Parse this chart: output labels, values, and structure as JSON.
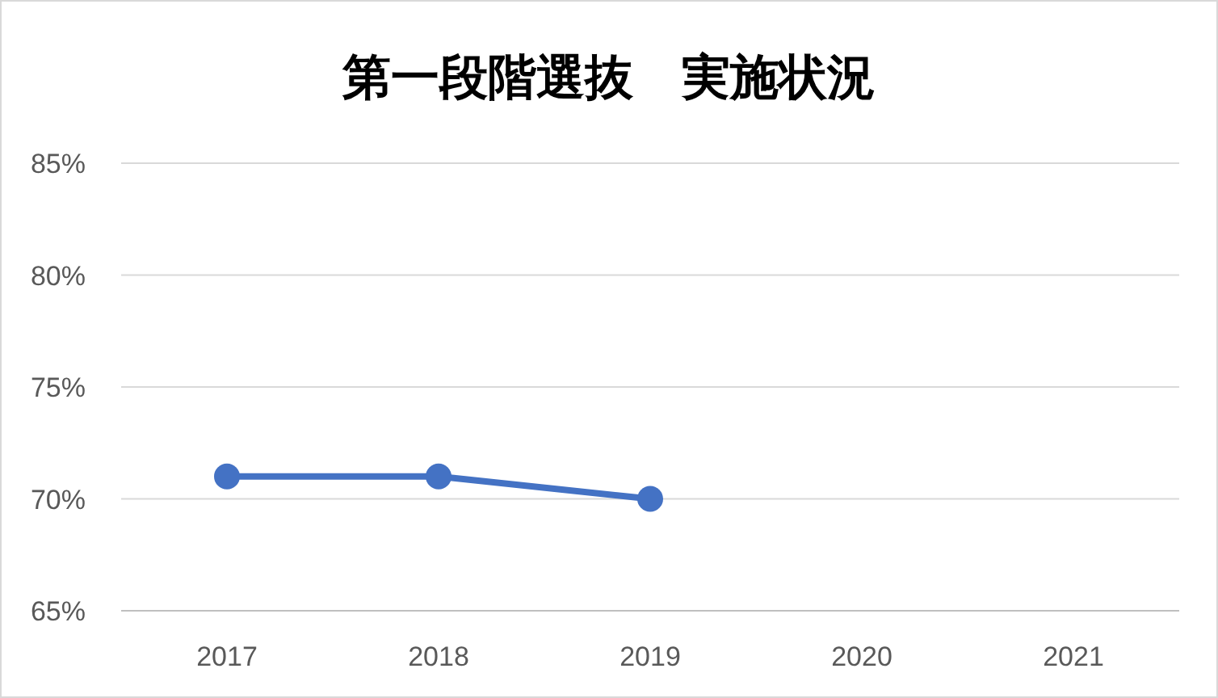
{
  "chart_data": {
    "type": "line",
    "title": "第一段階選抜　実施状況",
    "categories": [
      "2017",
      "2018",
      "2019",
      "2020",
      "2021"
    ],
    "series": [
      {
        "color": "#4472c4",
        "values": [
          71,
          71,
          70,
          null,
          null
        ]
      }
    ],
    "ylim": [
      65,
      85
    ],
    "yticks": [
      {
        "value": 65,
        "label": "65%"
      },
      {
        "value": 70,
        "label": "70%"
      },
      {
        "value": 75,
        "label": "75%"
      },
      {
        "value": 80,
        "label": "80%"
      },
      {
        "value": 85,
        "label": "85%"
      }
    ],
    "grid": "y",
    "marker": "circle",
    "line_style": "solid"
  }
}
